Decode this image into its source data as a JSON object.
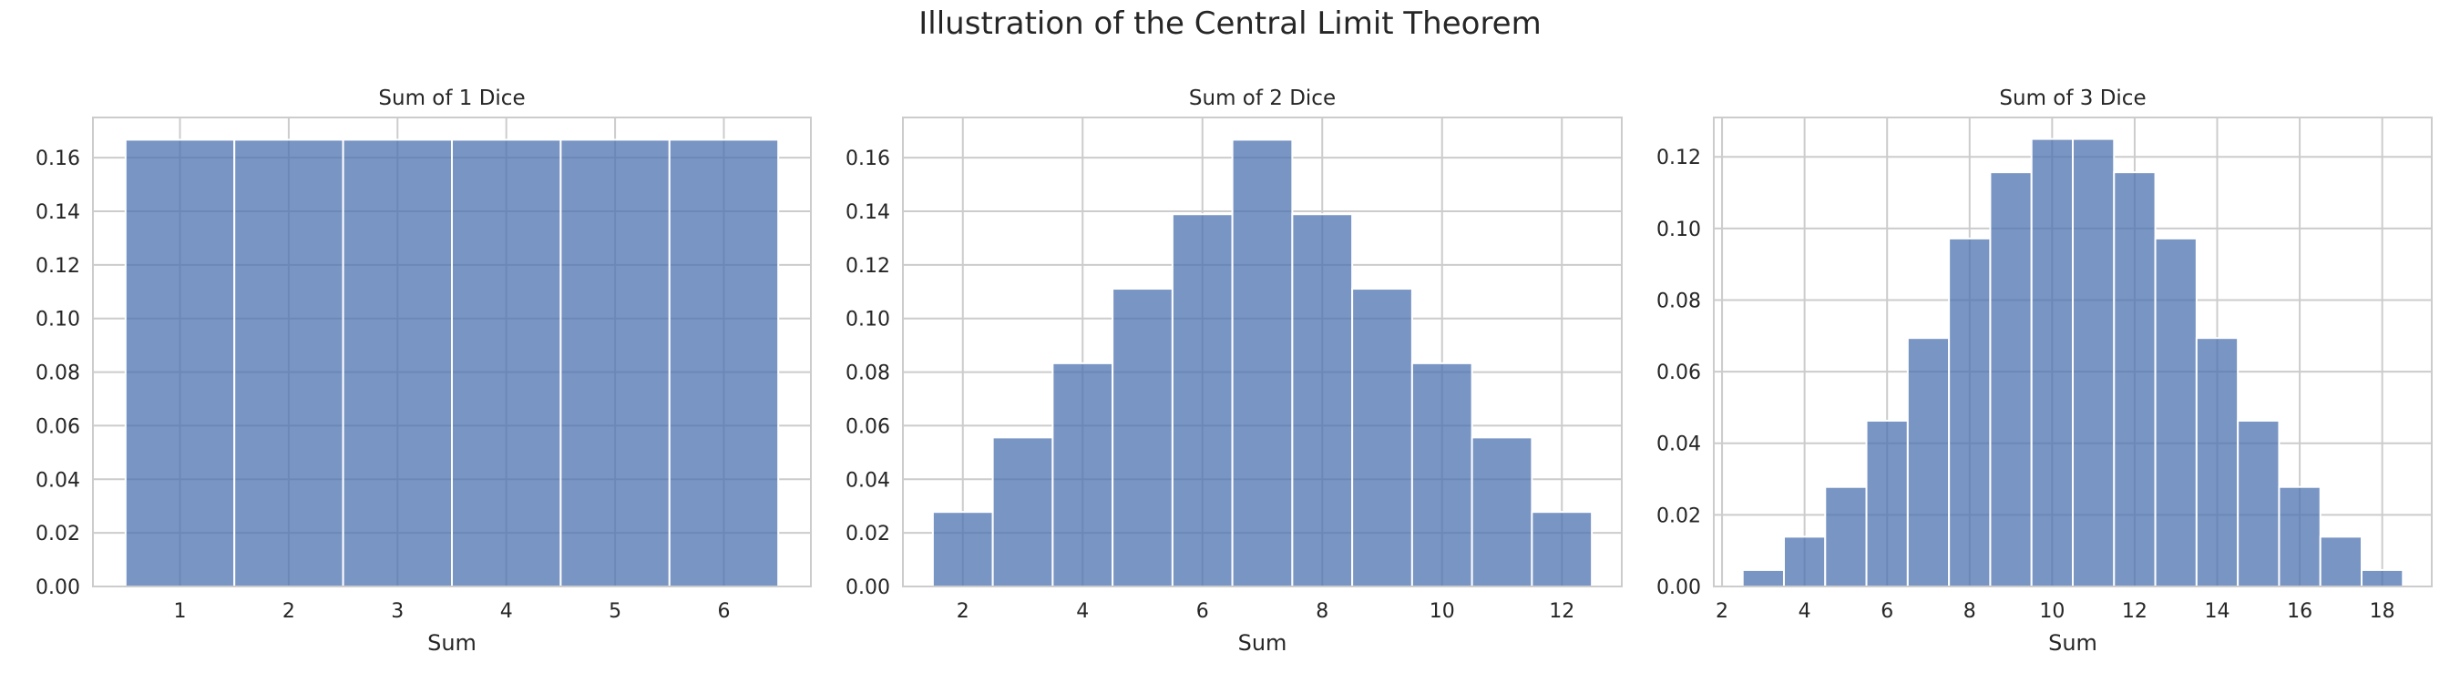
{
  "figure": {
    "suptitle": "Illustration of the Central Limit Theorem"
  },
  "colors": {
    "bar_fill": "#4c72b0",
    "bar_stroke": "#ffffff",
    "grid": "#cccccc",
    "spine": "#cccccc"
  },
  "chart_data": [
    {
      "type": "bar",
      "title": "Sum of 1 Dice",
      "xlabel": "Sum",
      "ylabel": "",
      "x": [
        1,
        2,
        3,
        4,
        5,
        6
      ],
      "values": [
        0.1667,
        0.1667,
        0.1667,
        0.1667,
        0.1667,
        0.1667
      ],
      "xlim": [
        0.2,
        6.8
      ],
      "ylim": [
        0,
        0.175
      ],
      "xticks": [
        1,
        2,
        3,
        4,
        5,
        6
      ],
      "yticks": [
        0,
        0.02,
        0.04,
        0.06,
        0.08,
        0.1,
        0.12,
        0.14,
        0.16
      ],
      "ytick_labels": [
        "0.00",
        "0.02",
        "0.04",
        "0.06",
        "0.08",
        "0.10",
        "0.12",
        "0.14",
        "0.16"
      ],
      "grid": true,
      "legend": "none"
    },
    {
      "type": "bar",
      "title": "Sum of 2 Dice",
      "xlabel": "Sum",
      "ylabel": "",
      "x": [
        2,
        3,
        4,
        5,
        6,
        7,
        8,
        9,
        10,
        11,
        12
      ],
      "values": [
        0.0278,
        0.0556,
        0.0833,
        0.1111,
        0.1389,
        0.1667,
        0.1389,
        0.1111,
        0.0833,
        0.0556,
        0.0278
      ],
      "xlim": [
        1,
        13
      ],
      "ylim": [
        0,
        0.175
      ],
      "xticks": [
        2,
        4,
        6,
        8,
        10,
        12
      ],
      "yticks": [
        0,
        0.02,
        0.04,
        0.06,
        0.08,
        0.1,
        0.12,
        0.14,
        0.16
      ],
      "ytick_labels": [
        "0.00",
        "0.02",
        "0.04",
        "0.06",
        "0.08",
        "0.10",
        "0.12",
        "0.14",
        "0.16"
      ],
      "grid": true,
      "legend": "none"
    },
    {
      "type": "bar",
      "title": "Sum of 3 Dice",
      "xlabel": "Sum",
      "ylabel": "",
      "x": [
        3,
        4,
        5,
        6,
        7,
        8,
        9,
        10,
        11,
        12,
        13,
        14,
        15,
        16,
        17,
        18
      ],
      "values": [
        0.0046,
        0.0139,
        0.0278,
        0.0463,
        0.0694,
        0.0972,
        0.1157,
        0.125,
        0.125,
        0.1157,
        0.0972,
        0.0694,
        0.0463,
        0.0278,
        0.0139,
        0.0046
      ],
      "xlim": [
        1.8,
        19.2
      ],
      "ylim": [
        0,
        0.131
      ],
      "xticks": [
        2,
        4,
        6,
        8,
        10,
        12,
        14,
        16,
        18
      ],
      "yticks": [
        0,
        0.02,
        0.04,
        0.06,
        0.08,
        0.1,
        0.12
      ],
      "ytick_labels": [
        "0.00",
        "0.02",
        "0.04",
        "0.06",
        "0.08",
        "0.10",
        "0.12"
      ],
      "grid": true,
      "legend": "none"
    }
  ]
}
